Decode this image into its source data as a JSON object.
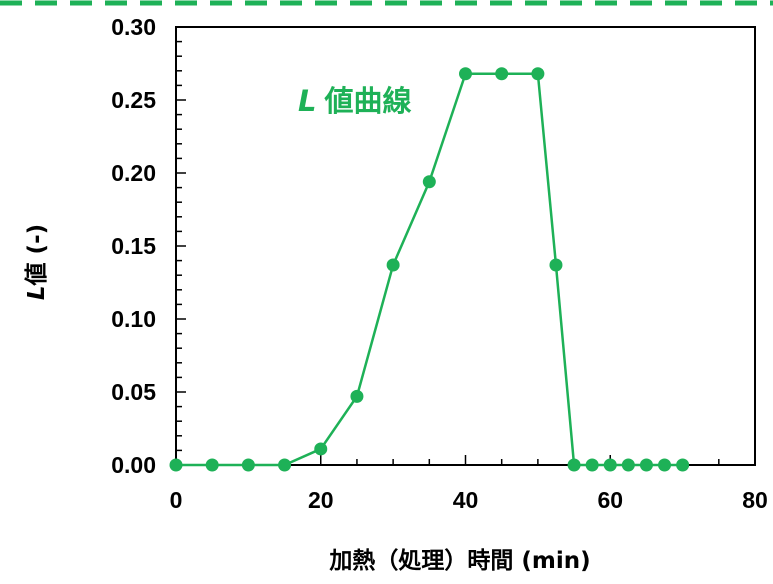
{
  "chart_data": {
    "type": "line",
    "title": "",
    "xlabel": "加熱（処理）時間 (min)",
    "ylabel": "L値 (-)",
    "ylabel_italic_prefix": "L",
    "ylabel_rest": "値 (-)",
    "xlim": [
      0,
      80
    ],
    "ylim": [
      0,
      0.3
    ],
    "x_ticks": [
      "0",
      "20",
      "40",
      "60",
      "80"
    ],
    "y_ticks": [
      "0.00",
      "0.05",
      "0.10",
      "0.15",
      "0.20",
      "0.25",
      "0.30"
    ],
    "grid": false,
    "series": [
      {
        "name": "L 値曲線",
        "name_italic_prefix": "L",
        "name_rest": "値曲線",
        "color": "#1eb157",
        "x": [
          0,
          5,
          10,
          15,
          20,
          25,
          30,
          35,
          40,
          45,
          50,
          52.5,
          55,
          57.5,
          60,
          62.5,
          65,
          67.5,
          70
        ],
        "y": [
          0,
          0,
          0,
          0,
          0.011,
          0.047,
          0.137,
          0.194,
          0.268,
          0.268,
          0.268,
          0.137,
          0,
          0,
          0,
          0,
          0,
          0,
          0
        ]
      }
    ]
  },
  "decoration": {
    "top_border_color": "#1eb157"
  }
}
